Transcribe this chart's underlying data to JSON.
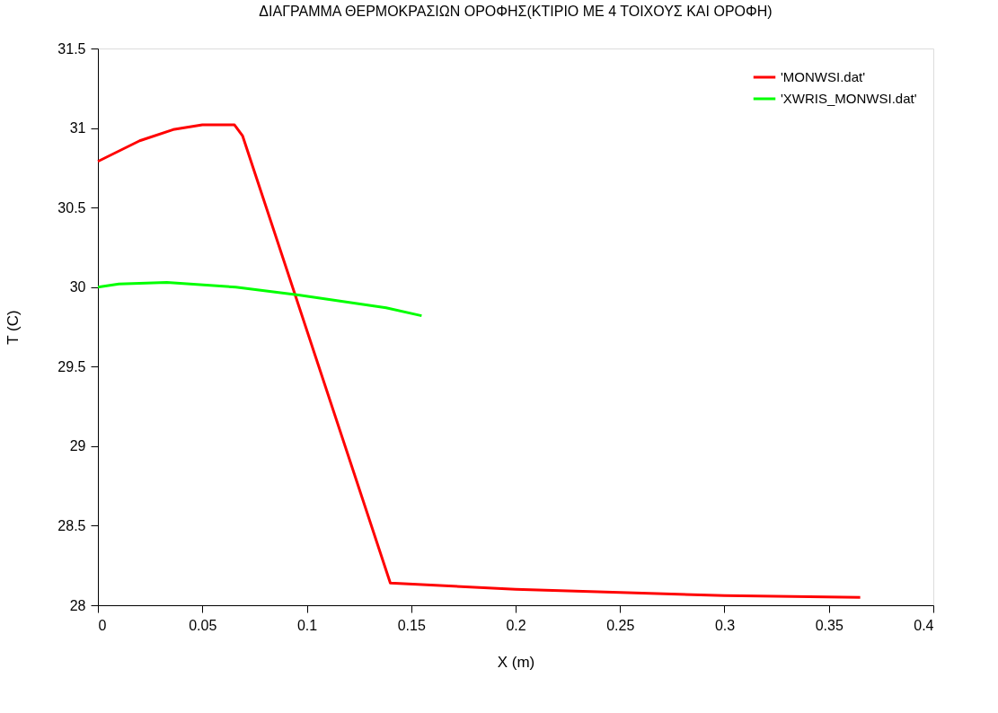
{
  "chart_data": {
    "type": "line",
    "title": "ΔΙΑΓΡΑΜΜΑ ΘΕΡΜΟΚΡΑΣΙΩΝ ΟΡΟΦΗΣ(ΚΤΙΡΙΟ ΜΕ 4 ΤΟΙΧΟΥΣ ΚΑΙ ΟΡΟΦΗ)",
    "xlabel": "X (m)",
    "ylabel": "T (C)",
    "xlim": [
      0,
      0.4
    ],
    "ylim": [
      28,
      31.5
    ],
    "xticks": [
      0,
      0.05,
      0.1,
      0.15,
      0.2,
      0.25,
      0.3,
      0.35,
      0.4
    ],
    "yticks": [
      28,
      28.5,
      29,
      29.5,
      30,
      30.5,
      31,
      31.5
    ],
    "grid": false,
    "legend": "top right",
    "marker": "none",
    "line_style": "solid",
    "series": [
      {
        "name": "'MONWSI.dat'",
        "color": "#ff0000",
        "x": [
          0,
          0.02,
          0.036,
          0.05,
          0.0654,
          0.0693,
          0.14,
          0.2,
          0.25,
          0.3,
          0.365
        ],
        "values": [
          30.79,
          30.92,
          30.99,
          31.02,
          31.02,
          30.95,
          28.14,
          28.1,
          28.08,
          28.06,
          28.05
        ]
      },
      {
        "name": "'XWRIS_MONWSI.dat'",
        "color": "#00ff00",
        "x": [
          0,
          0.01,
          0.033,
          0.066,
          0.096,
          0.138,
          0.155
        ],
        "values": [
          30.0,
          30.02,
          30.03,
          30.0,
          29.95,
          29.87,
          29.82
        ]
      }
    ]
  }
}
